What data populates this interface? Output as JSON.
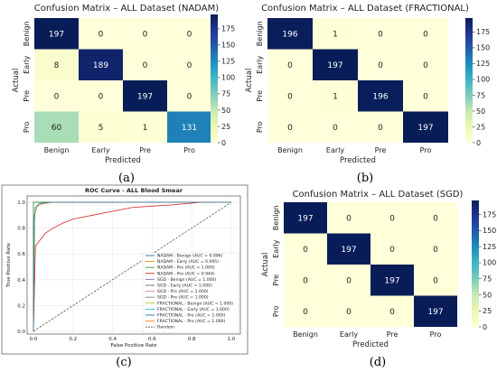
{
  "chart_data": [
    {
      "id": "a",
      "type": "heatmap",
      "title": "Confusion Matrix – ALL Dataset (NADAM)",
      "xlabel": "Predicted",
      "ylabel": "Actual",
      "x_categories": [
        "Benign",
        "Early",
        "Pre",
        "Pro"
      ],
      "y_categories": [
        "Benign",
        "Early",
        "Pre",
        "Pro"
      ],
      "matrix": [
        [
          197,
          0,
          0,
          0
        ],
        [
          8,
          189,
          0,
          0
        ],
        [
          0,
          0,
          197,
          0
        ],
        [
          60,
          5,
          1,
          131
        ]
      ],
      "colorbar_ticks": [
        0,
        25,
        50,
        75,
        100,
        125,
        150,
        175
      ],
      "colorbar_range": [
        0,
        197
      ],
      "subcaption": "(a)"
    },
    {
      "id": "b",
      "type": "heatmap",
      "title": "Confusion Matrix – ALL Dataset (FRACTIONAL)",
      "xlabel": "Predicted",
      "ylabel": "Actual",
      "x_categories": [
        "Benign",
        "Early",
        "Pre",
        "Pro"
      ],
      "y_categories": [
        "Benign",
        "Early",
        "Pre",
        "Pro"
      ],
      "matrix": [
        [
          196,
          1,
          0,
          0
        ],
        [
          0,
          197,
          0,
          0
        ],
        [
          0,
          1,
          196,
          0
        ],
        [
          0,
          0,
          0,
          197
        ]
      ],
      "colorbar_ticks": [
        0,
        25,
        50,
        75,
        100,
        125,
        150,
        175
      ],
      "colorbar_range": [
        0,
        197
      ],
      "subcaption": "(b)"
    },
    {
      "id": "c",
      "type": "line",
      "title": "ROC Curve - ALL Blood Smear",
      "xlabel": "False Positive Rate",
      "ylabel": "True Positive Rate",
      "xlim": [
        0,
        1
      ],
      "ylim": [
        0,
        1
      ],
      "x_ticks": [
        "0.0",
        "0.2",
        "0.4",
        "0.6",
        "0.8",
        "1.0"
      ],
      "y_ticks": [
        "0.0",
        "0.2",
        "0.4",
        "0.6",
        "0.8",
        "1.0"
      ],
      "legend_position": "lower right",
      "series": [
        {
          "name": "NADAM - Benign (AUC = 0.996)",
          "color": "#1f77b4",
          "points": [
            [
              0,
              0
            ],
            [
              0.005,
              0.85
            ],
            [
              0.01,
              0.96
            ],
            [
              0.03,
              0.99
            ],
            [
              0.08,
              1.0
            ],
            [
              1,
              1
            ]
          ]
        },
        {
          "name": "NADAM - Early (AUC = 0.995)",
          "color": "#ff7f0e",
          "points": [
            [
              0,
              0
            ],
            [
              0.005,
              0.9
            ],
            [
              0.02,
              0.97
            ],
            [
              0.05,
              0.99
            ],
            [
              0.1,
              1.0
            ],
            [
              1,
              1
            ]
          ]
        },
        {
          "name": "NADAM - Pre (AUC = 1.000)",
          "color": "#2ca02c",
          "points": [
            [
              0,
              0
            ],
            [
              0,
              1
            ],
            [
              1,
              1
            ]
          ]
        },
        {
          "name": "NADAM - Pro (AUC = 0.944)",
          "color": "#d62728",
          "points": [
            [
              0,
              0
            ],
            [
              0.01,
              0.66
            ],
            [
              0.03,
              0.7
            ],
            [
              0.06,
              0.76
            ],
            [
              0.1,
              0.8
            ],
            [
              0.15,
              0.84
            ],
            [
              0.2,
              0.87
            ],
            [
              0.3,
              0.9
            ],
            [
              0.4,
              0.93
            ],
            [
              0.5,
              0.96
            ],
            [
              0.6,
              0.97
            ],
            [
              0.7,
              0.98
            ],
            [
              0.85,
              1.0
            ],
            [
              1,
              1
            ]
          ]
        },
        {
          "name": "SGD - Benign (AUC = 1.000)",
          "color": "#9467bd",
          "points": [
            [
              0,
              0
            ],
            [
              0,
              1
            ],
            [
              1,
              1
            ]
          ]
        },
        {
          "name": "SGD - Early (AUC = 1.000)",
          "color": "#8c564b",
          "points": [
            [
              0,
              0
            ],
            [
              0,
              1
            ],
            [
              1,
              1
            ]
          ]
        },
        {
          "name": "SGD - Pre (AUC = 1.000)",
          "color": "#e377c2",
          "points": [
            [
              0,
              0
            ],
            [
              0,
              1
            ],
            [
              1,
              1
            ]
          ]
        },
        {
          "name": "SGD - Pro (AUC = 1.000)",
          "color": "#7f7f7f",
          "points": [
            [
              0,
              0
            ],
            [
              0,
              1
            ],
            [
              1,
              1
            ]
          ]
        },
        {
          "name": "FRACTIONAL - Benign (AUC = 1.000)",
          "color": "#bcbd22",
          "points": [
            [
              0,
              0
            ],
            [
              0,
              1
            ],
            [
              1,
              1
            ]
          ]
        },
        {
          "name": "FRACTIONAL - Early (AUC = 1.000)",
          "color": "#17becf",
          "points": [
            [
              0,
              0
            ],
            [
              0,
              1
            ],
            [
              1,
              1
            ]
          ]
        },
        {
          "name": "FRACTIONAL - Pre (AUC = 1.000)",
          "color": "#1f77b4",
          "points": [
            [
              0,
              0
            ],
            [
              0,
              1
            ],
            [
              1,
              1
            ]
          ]
        },
        {
          "name": "FRACTIONAL - Pro (AUC = 1.000)",
          "color": "#ff7f0e",
          "points": [
            [
              0,
              0
            ],
            [
              0,
              1
            ],
            [
              1,
              1
            ]
          ]
        },
        {
          "name": "Random",
          "color": "#555555",
          "dashed": true,
          "points": [
            [
              0,
              0
            ],
            [
              1,
              1
            ]
          ]
        }
      ],
      "subcaption": "(c)"
    },
    {
      "id": "d",
      "type": "heatmap",
      "title": "Confusion Matrix – ALL Dataset (SGD)",
      "xlabel": "Predicted",
      "ylabel": "Actual",
      "x_categories": [
        "Benign",
        "Early",
        "Pre",
        "Pro"
      ],
      "y_categories": [
        "Benign",
        "Early",
        "Pre",
        "Pro"
      ],
      "matrix": [
        [
          197,
          0,
          0,
          0
        ],
        [
          0,
          197,
          0,
          0
        ],
        [
          0,
          0,
          197,
          0
        ],
        [
          0,
          0,
          0,
          197
        ]
      ],
      "colorbar_ticks": [
        0,
        25,
        50,
        75,
        100,
        125,
        150,
        175
      ],
      "colorbar_range": [
        0,
        197
      ],
      "subcaption": "(d)"
    }
  ]
}
